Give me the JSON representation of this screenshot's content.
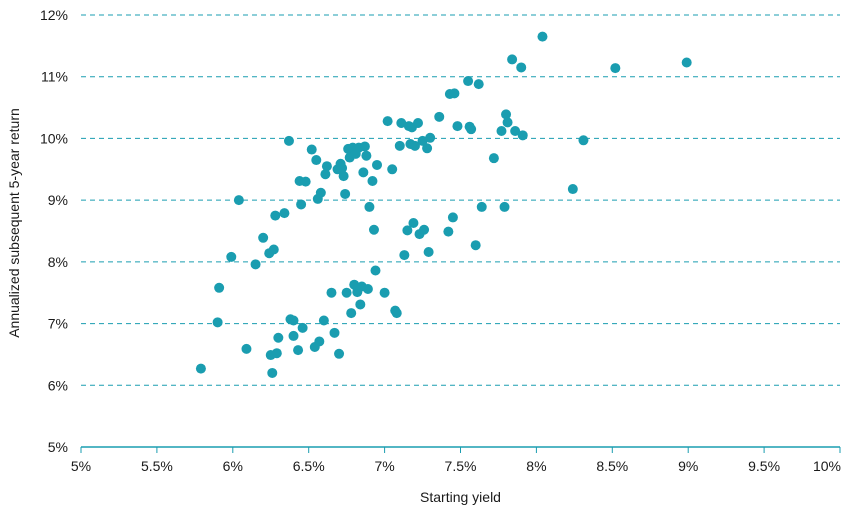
{
  "chart_data": {
    "type": "scatter",
    "xlabel": "Starting yield",
    "ylabel": "Annualized subsequent 5-year return",
    "xlim": [
      5,
      10
    ],
    "ylim": [
      5,
      12
    ],
    "x_ticks": [
      "5%",
      "5.5%",
      "6%",
      "6.5%",
      "7%",
      "7.5%",
      "8%",
      "8.5%",
      "9%",
      "9.5%",
      "10%"
    ],
    "y_ticks": [
      "5%",
      "6%",
      "7%",
      "8%",
      "9%",
      "10%",
      "11%",
      "12%"
    ],
    "grid": "horizontal-dashed",
    "colors": {
      "point": "#1a9db0",
      "grid": "#1a9db0",
      "axis": "#1a9db0",
      "text": "#1a1a1a"
    },
    "series": [
      {
        "values": [
          [
            5.79,
            6.27
          ],
          [
            5.9,
            7.02
          ],
          [
            5.91,
            7.58
          ],
          [
            5.99,
            8.08
          ],
          [
            6.04,
            9.0
          ],
          [
            6.09,
            6.59
          ],
          [
            6.15,
            7.96
          ],
          [
            6.2,
            8.39
          ],
          [
            6.24,
            8.14
          ],
          [
            6.25,
            6.49
          ],
          [
            6.26,
            6.2
          ],
          [
            6.27,
            8.2
          ],
          [
            6.28,
            8.75
          ],
          [
            6.29,
            6.52
          ],
          [
            6.3,
            6.77
          ],
          [
            6.34,
            8.79
          ],
          [
            6.37,
            9.96
          ],
          [
            6.38,
            7.07
          ],
          [
            6.4,
            7.05
          ],
          [
            6.4,
            6.8
          ],
          [
            6.43,
            6.57
          ],
          [
            6.44,
            9.31
          ],
          [
            6.45,
            8.93
          ],
          [
            6.46,
            6.93
          ],
          [
            6.48,
            9.3
          ],
          [
            6.52,
            9.82
          ],
          [
            6.54,
            6.62
          ],
          [
            6.55,
            9.65
          ],
          [
            6.56,
            9.02
          ],
          [
            6.57,
            6.71
          ],
          [
            6.58,
            9.12
          ],
          [
            6.6,
            7.05
          ],
          [
            6.61,
            9.42
          ],
          [
            6.62,
            9.55
          ],
          [
            6.65,
            7.5
          ],
          [
            6.67,
            6.85
          ],
          [
            6.69,
            9.5
          ],
          [
            6.7,
            6.51
          ],
          [
            6.71,
            9.59
          ],
          [
            6.72,
            9.52
          ],
          [
            6.73,
            9.39
          ],
          [
            6.74,
            9.1
          ],
          [
            6.75,
            7.5
          ],
          [
            6.76,
            9.83
          ],
          [
            6.77,
            9.69
          ],
          [
            6.78,
            7.17
          ],
          [
            6.79,
            9.85
          ],
          [
            6.8,
            7.63
          ],
          [
            6.81,
            9.75
          ],
          [
            6.82,
            7.51
          ],
          [
            6.83,
            9.85
          ],
          [
            6.84,
            7.31
          ],
          [
            6.85,
            7.6
          ],
          [
            6.86,
            9.45
          ],
          [
            6.87,
            9.87
          ],
          [
            6.88,
            9.72
          ],
          [
            6.89,
            7.56
          ],
          [
            6.9,
            8.89
          ],
          [
            6.92,
            9.31
          ],
          [
            6.93,
            8.52
          ],
          [
            6.94,
            7.86
          ],
          [
            6.95,
            9.57
          ],
          [
            7.0,
            7.5
          ],
          [
            7.02,
            10.28
          ],
          [
            7.05,
            9.5
          ],
          [
            7.07,
            7.21
          ],
          [
            7.08,
            7.17
          ],
          [
            7.1,
            9.88
          ],
          [
            7.11,
            10.25
          ],
          [
            7.13,
            8.11
          ],
          [
            7.15,
            8.51
          ],
          [
            7.16,
            10.2
          ],
          [
            7.17,
            9.91
          ],
          [
            7.18,
            10.18
          ],
          [
            7.19,
            8.63
          ],
          [
            7.2,
            9.88
          ],
          [
            7.22,
            10.25
          ],
          [
            7.23,
            8.45
          ],
          [
            7.25,
            9.96
          ],
          [
            7.26,
            8.52
          ],
          [
            7.28,
            9.84
          ],
          [
            7.29,
            8.16
          ],
          [
            7.3,
            10.01
          ],
          [
            7.36,
            10.35
          ],
          [
            7.42,
            8.49
          ],
          [
            7.43,
            10.72
          ],
          [
            7.45,
            8.72
          ],
          [
            7.46,
            10.73
          ],
          [
            7.48,
            10.2
          ],
          [
            7.55,
            10.93
          ],
          [
            7.56,
            10.19
          ],
          [
            7.57,
            10.15
          ],
          [
            7.6,
            8.27
          ],
          [
            7.62,
            10.88
          ],
          [
            7.64,
            8.89
          ],
          [
            7.72,
            9.68
          ],
          [
            7.77,
            10.12
          ],
          [
            7.79,
            8.89
          ],
          [
            7.8,
            10.39
          ],
          [
            7.81,
            10.26
          ],
          [
            7.84,
            11.28
          ],
          [
            7.86,
            10.12
          ],
          [
            7.9,
            11.15
          ],
          [
            7.91,
            10.05
          ],
          [
            8.04,
            11.65
          ],
          [
            8.24,
            9.18
          ],
          [
            8.31,
            9.97
          ],
          [
            8.52,
            11.14
          ],
          [
            8.99,
            11.23
          ]
        ]
      }
    ]
  }
}
